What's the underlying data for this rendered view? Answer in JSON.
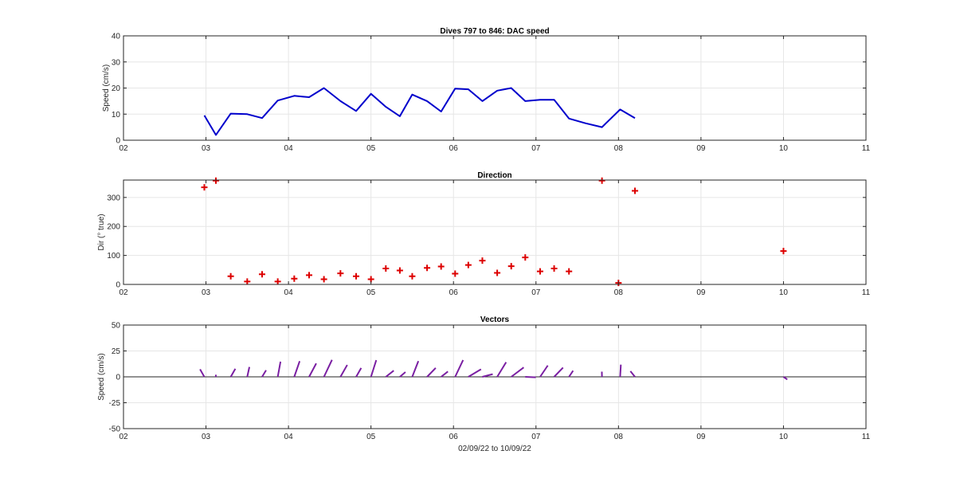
{
  "figure_xlabel": "02/09/22 to 10/09/22",
  "colors": {
    "speed_line": "#0000cc",
    "direction_marker": "#dd0000",
    "vectors": "#7a1fa2",
    "grid": "#e6e6e6",
    "axes": "#262626"
  },
  "chart_data": [
    {
      "type": "line",
      "title": "Dives 797 to 846: DAC speed",
      "ylabel": "Speed (cm/s)",
      "xlim": [
        2,
        11
      ],
      "ylim": [
        0,
        40
      ],
      "xtick_values": [
        2,
        3,
        4,
        5,
        6,
        7,
        8,
        9,
        10,
        11
      ],
      "xtick_labels": [
        "02",
        "03",
        "04",
        "05",
        "06",
        "07",
        "08",
        "09",
        "10",
        "11"
      ],
      "ytick_values": [
        0,
        10,
        20,
        30,
        40
      ],
      "ytick_labels": [
        "0",
        "10",
        "20",
        "30",
        "40"
      ],
      "grid": true,
      "series": [
        {
          "x": [
            2.98,
            3.12,
            3.3,
            3.5,
            3.68,
            3.87,
            4.07,
            4.25,
            4.43,
            4.63,
            4.82,
            5.0,
            5.18,
            5.35,
            5.5,
            5.68,
            5.85,
            6.02,
            6.18,
            6.35,
            6.53,
            6.7,
            6.87,
            7.05,
            7.22,
            7.4,
            7.6,
            7.8,
            8.02,
            8.2
          ],
          "y": [
            9.5,
            2.0,
            10.2,
            10.0,
            8.5,
            15.2,
            17.0,
            16.5,
            20.0,
            15.0,
            11.2,
            17.8,
            12.8,
            9.2,
            17.5,
            15.0,
            11.0,
            19.8,
            19.5,
            15.0,
            19.0,
            20.0,
            15.0,
            15.5,
            15.5,
            8.3,
            6.5,
            5.0,
            11.8,
            8.5
          ]
        }
      ]
    },
    {
      "type": "scatter",
      "title": "Direction",
      "ylabel": "Dir (° true)",
      "xlim": [
        2,
        11
      ],
      "ylim": [
        0,
        360
      ],
      "xtick_values": [
        2,
        3,
        4,
        5,
        6,
        7,
        8,
        9,
        10,
        11
      ],
      "xtick_labels": [
        "02",
        "03",
        "04",
        "05",
        "06",
        "07",
        "08",
        "09",
        "10",
        "11"
      ],
      "ytick_values": [
        0,
        100,
        200,
        300
      ],
      "ytick_labels": [
        "0",
        "100",
        "200",
        "300"
      ],
      "grid": true,
      "series": [
        {
          "x": [
            2.98,
            3.12,
            3.3,
            3.5,
            3.68,
            3.87,
            4.07,
            4.25,
            4.43,
            4.63,
            4.82,
            5.0,
            5.18,
            5.35,
            5.5,
            5.68,
            5.85,
            6.02,
            6.18,
            6.35,
            6.53,
            6.7,
            6.87,
            7.05,
            7.22,
            7.4,
            7.8,
            8.0,
            8.2,
            10.0
          ],
          "y": [
            335,
            358,
            28,
            10,
            35,
            10,
            20,
            32,
            18,
            38,
            28,
            18,
            55,
            48,
            28,
            57,
            62,
            37,
            67,
            82,
            40,
            63,
            93,
            45,
            55,
            45,
            358,
            5,
            323,
            115
          ]
        }
      ]
    },
    {
      "type": "vector",
      "title": "Vectors",
      "ylabel": "Speed (cm/s)",
      "xlim": [
        2,
        11
      ],
      "ylim": [
        -50,
        50
      ],
      "xtick_values": [
        2,
        3,
        4,
        5,
        6,
        7,
        8,
        9,
        10,
        11
      ],
      "xtick_labels": [
        "02",
        "03",
        "04",
        "05",
        "06",
        "07",
        "08",
        "09",
        "10",
        "11"
      ],
      "ytick_values": [
        -50,
        -25,
        0,
        25,
        50
      ],
      "ytick_labels": [
        "-50",
        "-25",
        "0",
        "25",
        "50"
      ],
      "grid": true,
      "zero_line": true,
      "series": [
        {
          "x": [
            2.98,
            3.12,
            3.3,
            3.5,
            3.68,
            3.87,
            4.07,
            4.25,
            4.43,
            4.63,
            4.82,
            5.0,
            5.18,
            5.35,
            5.5,
            5.68,
            5.85,
            6.02,
            6.18,
            6.35,
            6.53,
            6.7,
            6.87,
            7.05,
            7.22,
            7.4,
            7.8,
            8.02,
            8.2,
            10.0
          ],
          "speed": [
            9.5,
            2.0,
            10.2,
            10.0,
            8.5,
            15.2,
            17.0,
            16.5,
            20.0,
            15.0,
            11.2,
            17.8,
            12.8,
            9.2,
            17.5,
            15.0,
            11.0,
            19.8,
            19.5,
            15.0,
            19.0,
            20.0,
            15.0,
            15.5,
            15.5,
            8.3,
            5.0,
            11.8,
            8.5,
            6.0
          ],
          "direction": [
            320,
            358,
            40,
            18,
            42,
            15,
            27,
            38,
            35,
            40,
            40,
            25,
            62,
            60,
            30,
            55,
            62,
            35,
            68,
            80,
            42,
            63,
            92,
            45,
            55,
            45,
            358,
            5,
            310,
            115
          ]
        }
      ]
    }
  ]
}
